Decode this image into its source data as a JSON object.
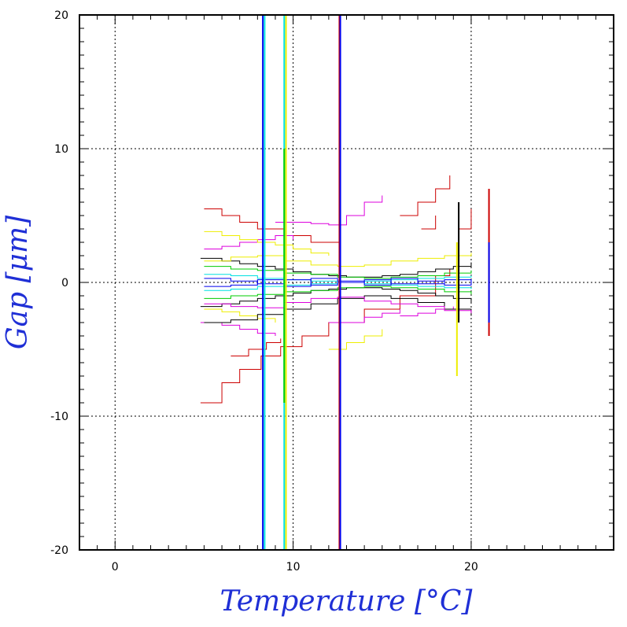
{
  "chart_data": {
    "type": "line",
    "title": "",
    "xlabel": "Temperature [°C]",
    "ylabel": "Gap [μm]",
    "xlim": [
      -2,
      28
    ],
    "ylim": [
      -20,
      20
    ],
    "x_ticks": [
      0,
      10,
      20
    ],
    "y_ticks": [
      -20,
      -10,
      0,
      10,
      20
    ],
    "x_minor_step": 1,
    "y_minor_step": 1,
    "grid": true,
    "legend": "none",
    "colors": {
      "axis_title": "#1f2fd6",
      "red": "#cc0000",
      "magenta": "#dd00dd",
      "yellow": "#eeee00",
      "cyan": "#00e0e0",
      "green": "#00cc00",
      "blue": "#0000ee",
      "black": "#000000"
    },
    "vertical_spikes": [
      {
        "x": 8.3,
        "y": [
          -20,
          20
        ],
        "color": "#0000ee"
      },
      {
        "x": 8.4,
        "y": [
          -20,
          20
        ],
        "color": "#00e0e0"
      },
      {
        "x": 9.5,
        "y": [
          -20,
          20
        ],
        "color": "#00e0e0"
      },
      {
        "x": 9.6,
        "y": [
          -20,
          20
        ],
        "color": "#eeee00"
      },
      {
        "x": 12.6,
        "y": [
          -20,
          20
        ],
        "color": "#cc0000"
      },
      {
        "x": 12.65,
        "y": [
          -20,
          20
        ],
        "color": "#0000ee"
      },
      {
        "x": 9.5,
        "y": [
          -9,
          10
        ],
        "color": "#00cc00"
      },
      {
        "x": 19.2,
        "y": [
          -7,
          3
        ],
        "color": "#eeee00"
      },
      {
        "x": 19.3,
        "y": [
          -3,
          6
        ],
        "color": "#000000"
      },
      {
        "x": 21.0,
        "y": [
          -4,
          7
        ],
        "color": "#cc0000"
      },
      {
        "x": 21.0,
        "y": [
          -3,
          3
        ],
        "color": "#0000ee"
      }
    ],
    "series": [
      {
        "color": "#cc0000",
        "x": [
          4.8,
          6,
          7,
          8.2,
          9.3,
          10.5,
          12,
          14,
          16,
          18,
          18.8
        ],
        "y": [
          -9,
          -7.5,
          -6.5,
          -5.5,
          -4.8,
          -4.0,
          -3.0,
          -2.0,
          -1.0,
          0.5,
          1.0
        ]
      },
      {
        "color": "#cc0000",
        "x": [
          6.5,
          7.5,
          8.5,
          9.3
        ],
        "y": [
          -5.5,
          -5,
          -4.5,
          -4.2
        ]
      },
      {
        "color": "#cc0000",
        "x": [
          5,
          6,
          7,
          8,
          9.5,
          11,
          12.6
        ],
        "y": [
          5.5,
          5,
          4.5,
          4,
          3.5,
          3,
          2.5
        ]
      },
      {
        "color": "#cc0000",
        "x": [
          16,
          17,
          18,
          18.8
        ],
        "y": [
          5,
          6,
          7,
          8
        ]
      },
      {
        "color": "#cc0000",
        "x": [
          17.2,
          18
        ],
        "y": [
          4,
          5
        ]
      },
      {
        "color": "#cc0000",
        "x": [
          19.3,
          20
        ],
        "y": [
          4,
          5.5
        ]
      },
      {
        "color": "#dd00dd",
        "x": [
          4.8,
          6,
          7,
          8,
          9
        ],
        "y": [
          -3,
          -3.2,
          -3.5,
          -3.8,
          -4
        ]
      },
      {
        "color": "#dd00dd",
        "x": [
          5,
          6,
          7,
          8,
          9,
          10
        ],
        "y": [
          2.5,
          2.7,
          3,
          3.2,
          3.5,
          3.2
        ]
      },
      {
        "color": "#dd00dd",
        "x": [
          9,
          10,
          11,
          12,
          13,
          14,
          15
        ],
        "y": [
          4.5,
          4.5,
          4.4,
          4.3,
          5,
          6,
          6.5
        ]
      },
      {
        "color": "#dd00dd",
        "x": [
          12,
          13,
          14,
          15,
          16
        ],
        "y": [
          -3,
          -3,
          -2.6,
          -2.3,
          -2
        ]
      },
      {
        "color": "#dd00dd",
        "x": [
          16,
          17,
          18,
          19
        ],
        "y": [
          -2.5,
          -2.3,
          -2,
          -1.8
        ]
      },
      {
        "color": "#eeee00",
        "x": [
          5,
          6,
          7,
          8,
          9,
          10,
          11,
          12
        ],
        "y": [
          3.8,
          3.5,
          3.2,
          3,
          2.8,
          2.5,
          2.2,
          2
        ]
      },
      {
        "color": "#eeee00",
        "x": [
          5,
          6,
          7,
          8,
          9
        ],
        "y": [
          -2,
          -2.2,
          -2.5,
          -2.7,
          -3
        ]
      },
      {
        "color": "#eeee00",
        "x": [
          12,
          13,
          14,
          15
        ],
        "y": [
          -5,
          -4.5,
          -4,
          -3.5
        ]
      },
      {
        "color": "#000000",
        "x": [
          4.8,
          6,
          7,
          8,
          9,
          10,
          11,
          12,
          13,
          14,
          15,
          16,
          17,
          18,
          19,
          20
        ],
        "y": [
          1.8,
          1.6,
          1.4,
          1.2,
          1.0,
          0.8,
          0.6,
          0.5,
          0.4,
          0.4,
          0.5,
          0.6,
          0.8,
          1.0,
          1.2,
          1.5
        ]
      },
      {
        "color": "#000000",
        "x": [
          4.8,
          6,
          7,
          8,
          9,
          10,
          11,
          12,
          13,
          14,
          15,
          16,
          17,
          18,
          19,
          20
        ],
        "y": [
          -1.8,
          -1.6,
          -1.4,
          -1.2,
          -1.0,
          -0.8,
          -0.6,
          -0.5,
          -0.4,
          -0.4,
          -0.5,
          -0.6,
          -0.8,
          -1.0,
          -1.2,
          -1.5
        ]
      },
      {
        "color": "#000000",
        "x": [
          5,
          6.5,
          8,
          9.5,
          11,
          12.5,
          14,
          15.5,
          17,
          18.5,
          20
        ],
        "y": [
          -3,
          -2.8,
          -2.4,
          -2,
          -1.6,
          -1.2,
          -1,
          -1.2,
          -1.5,
          -2,
          -2.5
        ]
      },
      {
        "color": "#00cc00",
        "x": [
          5,
          6.5,
          8,
          9.5,
          11,
          12.5,
          14,
          15.5,
          17,
          18.5,
          20
        ],
        "y": [
          1.2,
          1.0,
          0.9,
          0.7,
          0.6,
          0.4,
          0.3,
          0.4,
          0.5,
          0.7,
          0.9
        ]
      },
      {
        "color": "#00cc00",
        "x": [
          5,
          6.5,
          8,
          9.5,
          11,
          12.5,
          14,
          15.5,
          17,
          18.5,
          20
        ],
        "y": [
          -1.2,
          -1.0,
          -0.9,
          -0.7,
          -0.6,
          -0.4,
          -0.3,
          -0.4,
          -0.5,
          -0.7,
          -0.9
        ]
      },
      {
        "color": "#00e0e0",
        "x": [
          5,
          6.5,
          8,
          9.5,
          11,
          12.5,
          14,
          15.5,
          17,
          18.5,
          20
        ],
        "y": [
          0.6,
          0.5,
          0.3,
          0.2,
          0.1,
          0.0,
          0.1,
          0.2,
          0.3,
          0.4,
          0.5
        ]
      },
      {
        "color": "#00e0e0",
        "x": [
          5,
          6.5,
          8,
          9.5,
          11,
          12.5,
          14,
          15.5,
          17,
          18.5,
          20
        ],
        "y": [
          -0.6,
          -0.5,
          -0.3,
          -0.2,
          -0.1,
          0.0,
          -0.1,
          -0.2,
          -0.3,
          -0.4,
          -0.5
        ]
      },
      {
        "color": "#0000ee",
        "x": [
          5,
          6.5,
          8,
          9.5,
          11,
          12.5,
          14,
          15.5,
          17,
          18.5,
          20
        ],
        "y": [
          0.3,
          0.1,
          -0.1,
          0.2,
          -0.2,
          0.0,
          0.2,
          -0.1,
          0.1,
          -0.2,
          0.2
        ]
      },
      {
        "color": "#0000ee",
        "x": [
          5,
          6.5,
          8,
          9.5,
          11,
          12.5,
          14,
          15.5,
          17,
          18.5,
          20
        ],
        "y": [
          -0.3,
          -0.2,
          0.2,
          -0.3,
          0.3,
          0.1,
          -0.2,
          0.3,
          -0.1,
          0.2,
          -0.2
        ]
      },
      {
        "color": "#dd00dd",
        "x": [
          5,
          6.5,
          8,
          9.5,
          11,
          12.5,
          14,
          15.5,
          17,
          18.5,
          20
        ],
        "y": [
          -1.6,
          -1.8,
          -1.9,
          -1.5,
          -1.2,
          -1.1,
          -1.4,
          -1.6,
          -1.8,
          -2.1,
          -2.3
        ]
      },
      {
        "color": "#eeee00",
        "x": [
          5,
          6.5,
          8,
          9.5,
          11,
          12.5,
          14,
          15.5,
          17,
          18.5,
          20
        ],
        "y": [
          1.6,
          1.9,
          2.0,
          1.6,
          1.3,
          1.2,
          1.3,
          1.6,
          1.8,
          2.0,
          2.2
        ]
      }
    ]
  }
}
